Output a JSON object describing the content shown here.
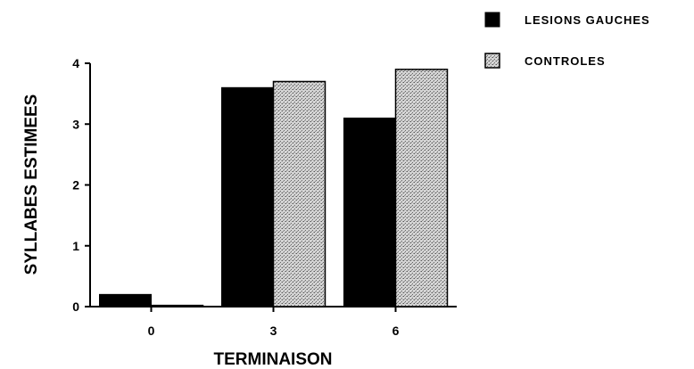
{
  "chart_data": {
    "type": "bar",
    "categories": [
      "0",
      "3",
      "6"
    ],
    "series": [
      {
        "name": "LESIONS GAUCHES",
        "values": [
          0.2,
          3.6,
          3.1
        ],
        "color": "#000000",
        "pattern": "solid"
      },
      {
        "name": "CONTROLES",
        "values": [
          0.02,
          3.7,
          3.9
        ],
        "color": "#c8c8c8",
        "pattern": "stippled"
      }
    ],
    "title": "",
    "xlabel": "TERMINAISON",
    "ylabel": "SYLLABES  ESTIMEES",
    "ylim": [
      0,
      4
    ],
    "yticks": [
      "0",
      "1",
      "2",
      "3",
      "4"
    ],
    "grid": false,
    "legend": "top-right"
  }
}
